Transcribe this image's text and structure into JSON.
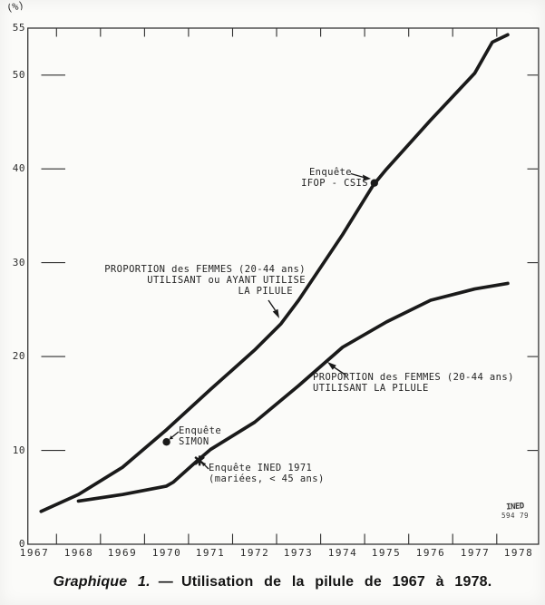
{
  "page": {
    "caption": {
      "prefix": "Graphique 1.",
      "separator": "—",
      "text": "Utilisation de la pilule de 1967 à 1978."
    },
    "credit": {
      "line1": "INED",
      "line2": "594 79"
    }
  },
  "chart_data": {
    "type": "line",
    "title": "",
    "xlabel": "",
    "ylabel": "(%)",
    "ylim": [
      0,
      55
    ],
    "xlim": [
      1966.85,
      1978.45
    ],
    "grid": false,
    "frame": true,
    "legend_position": "inline-annotations",
    "axis_color": "#2e2e2e",
    "line_color": "#1a1a1a",
    "x_tick_labels": [
      "1967",
      "1968",
      "1969",
      "1970",
      "1971",
      "1972",
      "1973",
      "1974",
      "1975",
      "1976",
      "1977",
      "1978"
    ],
    "y_ticks": [
      0,
      10,
      20,
      30,
      40,
      50,
      55
    ],
    "series": [
      {
        "name": "PROPORTION des FEMMES (20-44 ans) UTILISANT ou AYANT UTILISE LA PILULE",
        "label_lines": [
          "PROPORTION des FEMMES (20-44 ans)",
          "UTILISANT ou AYANT UTILISE",
          "LA PILULE"
        ],
        "points": [
          [
            1967.15,
            3.5
          ],
          [
            1968,
            5.3
          ],
          [
            1969,
            8.2
          ],
          [
            1970,
            12.2
          ],
          [
            1971,
            16.5
          ],
          [
            1972,
            20.7
          ],
          [
            1972.6,
            23.5
          ],
          [
            1973,
            26.0
          ],
          [
            1974,
            33.0
          ],
          [
            1974.7,
            38.3
          ],
          [
            1975,
            40.0
          ],
          [
            1976,
            45.2
          ],
          [
            1977,
            50.2
          ],
          [
            1977.4,
            53.5
          ],
          [
            1977.75,
            54.3
          ]
        ]
      },
      {
        "name": "PROPORTION des FEMMES (20-44 ans) UTILISANT LA PILULE",
        "label_lines": [
          "PROPORTION des FEMMES (20-44 ans)",
          "UTILISANT LA PILULE"
        ],
        "points": [
          [
            1968,
            4.6
          ],
          [
            1969,
            5.3
          ],
          [
            1970,
            6.2
          ],
          [
            1970.15,
            6.6
          ],
          [
            1970.7,
            8.9
          ],
          [
            1971,
            10.1
          ],
          [
            1972,
            13.0
          ],
          [
            1973,
            16.9
          ],
          [
            1974,
            21.0
          ],
          [
            1975,
            23.7
          ],
          [
            1976,
            26.0
          ],
          [
            1977,
            27.2
          ],
          [
            1977.75,
            27.8
          ]
        ]
      }
    ],
    "annotations": [
      {
        "id": "ifop",
        "lines": [
          "Enquête",
          "IFOP - CSIS"
        ],
        "marker": "dot",
        "x": 1974.72,
        "y": 38.5
      },
      {
        "id": "simon",
        "lines": [
          "Enquête",
          "SIMON"
        ],
        "marker": "dot",
        "x": 1970.0,
        "y": 10.9
      },
      {
        "id": "ined",
        "lines": [
          "Enquête INED 1971",
          "(mariées, < 45 ans)"
        ],
        "marker": "cross",
        "x": 1970.75,
        "y": 8.9
      }
    ]
  }
}
